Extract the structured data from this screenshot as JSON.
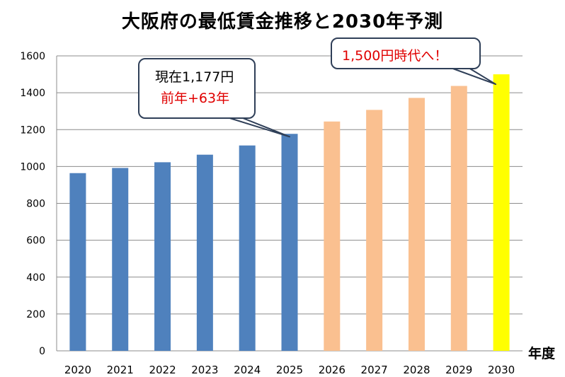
{
  "chart_data": {
    "type": "bar",
    "title": "大阪府の最低賃金推移と2030年予測",
    "xlabel": "年度",
    "ylabel": "",
    "ylim": [
      0,
      1600
    ],
    "yticks": [
      0,
      200,
      400,
      600,
      800,
      1000,
      1200,
      1400,
      1600
    ],
    "grid": true,
    "categories": [
      "2020",
      "2021",
      "2022",
      "2023",
      "2024",
      "2025",
      "2026",
      "2027",
      "2028",
      "2029",
      "2030"
    ],
    "values": [
      964,
      992,
      1023,
      1064,
      1114,
      1177,
      1244,
      1307,
      1372,
      1437,
      1500
    ],
    "bar_colors": [
      "#4f81bd",
      "#4f81bd",
      "#4f81bd",
      "#4f81bd",
      "#4f81bd",
      "#4f81bd",
      "#fac090",
      "#fac090",
      "#fac090",
      "#fac090",
      "#ffff00"
    ],
    "annotations": [
      {
        "category": "2025",
        "lines": [
          "現在1,177円",
          "前年+63年"
        ],
        "line_colors": [
          "#000000",
          "#e00000"
        ]
      },
      {
        "category": "2030",
        "lines": [
          "1,500円時代へ！"
        ],
        "line_colors": [
          "#e00000"
        ]
      }
    ]
  }
}
